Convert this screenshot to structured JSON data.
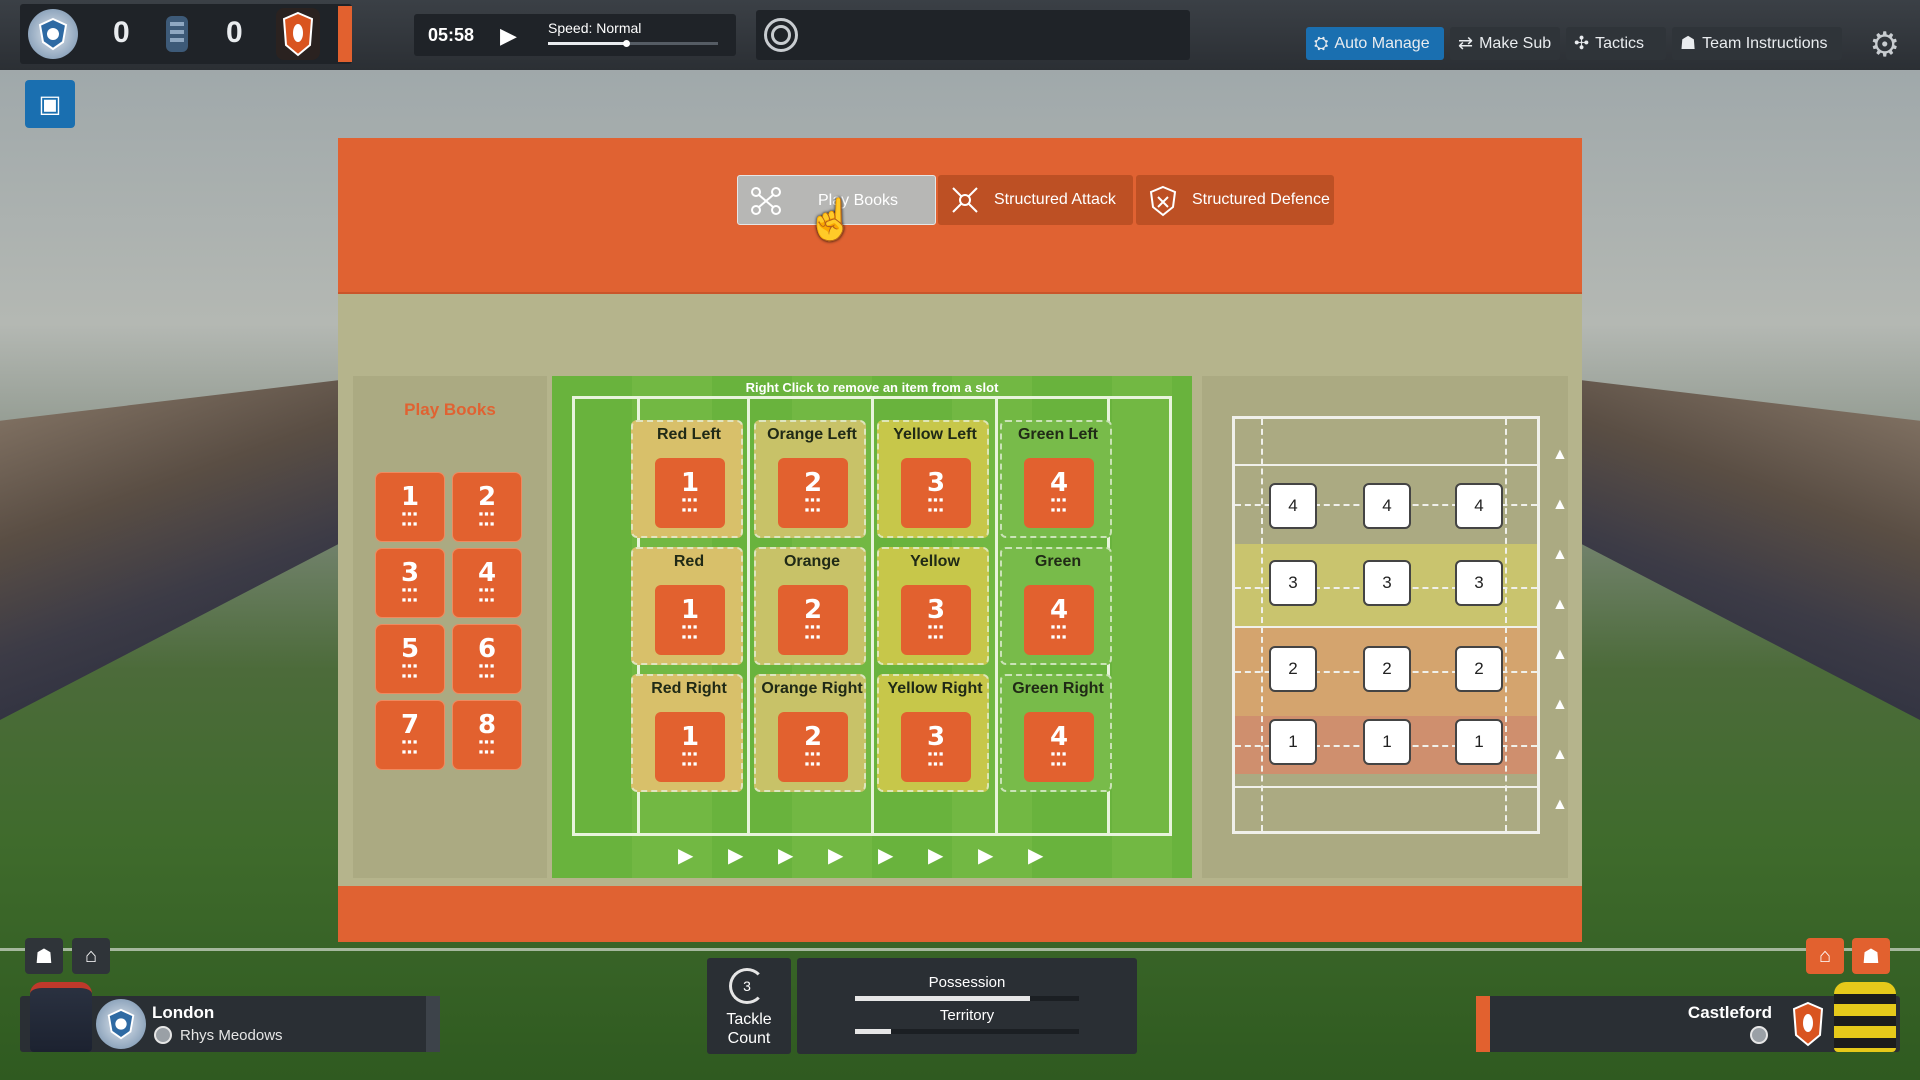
{
  "topbar": {
    "home_score": "0",
    "away_score": "0",
    "clock": "05:58",
    "speed_label": "Speed: Normal",
    "speed_level": 0.46,
    "buttons": [
      {
        "label": "Auto Manage",
        "icon": "shield-gear-icon",
        "active": true
      },
      {
        "label": "Make Sub",
        "icon": "swap-icon",
        "active": false
      },
      {
        "label": "Tactics",
        "icon": "tactics-icon",
        "active": false
      },
      {
        "label": "Team Instructions",
        "icon": "team-icon",
        "active": false
      }
    ]
  },
  "modal": {
    "tabs": [
      {
        "label": "Play Books",
        "icon": "network-icon",
        "selected": true
      },
      {
        "label": "Structured Attack",
        "icon": "attack-icon",
        "selected": false
      },
      {
        "label": "Structured Defence",
        "icon": "defence-shield-icon",
        "selected": false
      }
    ],
    "playbooks": {
      "title": "Play Books",
      "tiles": [
        "1",
        "2",
        "3",
        "4",
        "5",
        "6",
        "7",
        "8"
      ]
    },
    "field": {
      "hint": "Right Click to remove an item from a slot",
      "zones": [
        {
          "label": "Red Left",
          "value": "1"
        },
        {
          "label": "Orange Left",
          "value": "2"
        },
        {
          "label": "Yellow Left",
          "value": "3"
        },
        {
          "label": "Green Left",
          "value": "4"
        },
        {
          "label": "Red",
          "value": "1"
        },
        {
          "label": "Orange",
          "value": "2"
        },
        {
          "label": "Yellow",
          "value": "3"
        },
        {
          "label": "Green",
          "value": "4"
        },
        {
          "label": "Red Right",
          "value": "1"
        },
        {
          "label": "Orange Right",
          "value": "2"
        },
        {
          "label": "Yellow Right",
          "value": "3"
        },
        {
          "label": "Green Right",
          "value": "4"
        }
      ],
      "arrow_count": 8
    },
    "diagram": {
      "rows": [
        {
          "values": [
            "4",
            "4",
            "4"
          ]
        },
        {
          "values": [
            "3",
            "3",
            "3"
          ]
        },
        {
          "values": [
            "2",
            "2",
            "2"
          ]
        },
        {
          "values": [
            "1",
            "1",
            "1"
          ]
        }
      ],
      "triangle_count": 8
    }
  },
  "hud": {
    "home_team": "London",
    "home_player": "Rhys Meodows",
    "away_team": "Castleford",
    "tackle_count": "3",
    "tackle_label_1": "Tackle",
    "tackle_label_2": "Count",
    "possession_label": "Possession",
    "possession_value": 0.78,
    "territory_label": "Territory",
    "territory_value": 0.16
  },
  "colors": {
    "accent_orange": "#e06232",
    "accent_blue": "#1a6fb0",
    "field_green": "#69b33d"
  }
}
